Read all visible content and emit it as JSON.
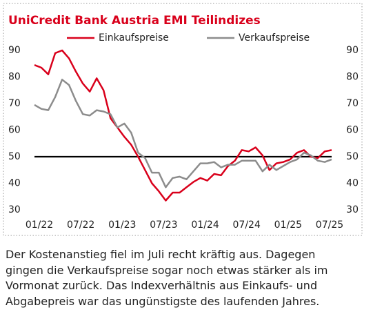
{
  "chart_data": {
    "type": "line",
    "title": "UniCredit Bank Austria EMI Teilindizes",
    "categories": [
      "01/22",
      null,
      null,
      null,
      null,
      null,
      "07/22",
      null,
      null,
      null,
      null,
      null,
      "01/23",
      null,
      null,
      null,
      null,
      null,
      "07/23",
      null,
      null,
      null,
      null,
      null,
      "01/24",
      null,
      null,
      null,
      null,
      null,
      "07/24",
      null,
      null,
      null,
      null,
      null,
      "01/25",
      null,
      null,
      null,
      null,
      null,
      "07/25",
      null
    ],
    "series": [
      {
        "name": "Einkaufspreise",
        "color": "#d9001b",
        "values": [
          84.5,
          83.5,
          81,
          89,
          90,
          87,
          82,
          77.5,
          74.5,
          79.5,
          75,
          64.5,
          61,
          57.5,
          54.5,
          50,
          45,
          40,
          37,
          33.5,
          36.5,
          36.5,
          38.5,
          40.5,
          42,
          41,
          43.5,
          43,
          46.5,
          48.5,
          52.5,
          52,
          53.5,
          50.5,
          45,
          47.5,
          48,
          49,
          51.5,
          52.5,
          50,
          49.5,
          52,
          52.5
        ]
      },
      {
        "name": "Verkaufspreise",
        "color": "#8c8c8c",
        "values": [
          69.5,
          68,
          67.5,
          72.5,
          79,
          77,
          71,
          66,
          65.5,
          67.5,
          67,
          66,
          61,
          62.5,
          59,
          51.5,
          49.5,
          44,
          44,
          38.5,
          42,
          42.5,
          41.5,
          44.5,
          47.5,
          47.5,
          48,
          46,
          47,
          47,
          48.5,
          48.5,
          48.5,
          44.5,
          47,
          45,
          46.5,
          48,
          49,
          51.5,
          50.5,
          48.5,
          48,
          49
        ]
      }
    ],
    "ylim": [
      30,
      90
    ],
    "yticks": [
      30,
      40,
      50,
      60,
      70,
      80,
      90
    ],
    "reference_line": 50,
    "grid": false
  },
  "caption": [
    "Der Kostenanstieg fiel im Juli recht kräftig aus. Dagegen",
    "gingen die Verkaufspreise sogar noch etwas stärker als im",
    "Vormonat zurück. Das Indexverhältnis aus Einkaufs- und",
    "Abgabepreis war das ungünstigste des laufenden Jahres."
  ]
}
